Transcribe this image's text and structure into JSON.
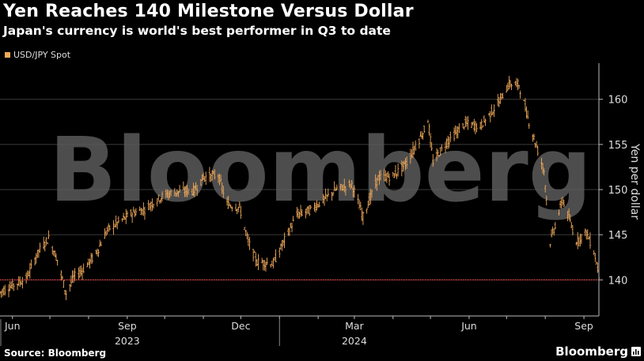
{
  "header": {
    "title": "Yen Reaches 140 Milestone Versus Dollar",
    "subtitle": "Japan's currency is world's best performer in Q3 to date"
  },
  "legend": {
    "label": "USD/JPY Spot"
  },
  "watermark": "Bloomberg",
  "footer": {
    "source": "Source: Bloomberg",
    "brand": "Bloomberg"
  },
  "colors": {
    "series": "#f0a95a",
    "reference_line": "#e03030",
    "grid": "#3a3a3a",
    "background": "#000000"
  },
  "chart_data": {
    "type": "line",
    "style": "ohlc-bars",
    "title": "Yen Reaches 140 Milestone Versus Dollar",
    "subtitle": "Japan's currency is world's best performer in Q3 to date",
    "ylabel": "Yen per dollar",
    "xlabel": "",
    "ylim": [
      136,
      164
    ],
    "yticks": [
      140,
      145,
      150,
      155,
      160
    ],
    "y_axis_side": "right",
    "xlim": [
      "2023-05-22",
      "2024-09-13"
    ],
    "x_ticks": [
      {
        "date": "2023-06-01",
        "label": "Jun"
      },
      {
        "date": "2023-09-01",
        "label": "Sep"
      },
      {
        "date": "2023-12-01",
        "label": "Dec"
      },
      {
        "date": "2024-03-01",
        "label": "Mar"
      },
      {
        "date": "2024-06-01",
        "label": "Jun"
      },
      {
        "date": "2024-09-01",
        "label": "Sep"
      }
    ],
    "year_labels": [
      {
        "date": "2023-09-01",
        "label": "2023"
      },
      {
        "date": "2024-03-01",
        "label": "2024"
      }
    ],
    "year_separators": [
      "2023-05-22",
      "2024-01-01"
    ],
    "reference_line": {
      "y": 140,
      "style": "dotted"
    },
    "grid": true,
    "legend_position": "top-left",
    "series": [
      {
        "name": "USD/JPY Spot",
        "points": [
          [
            "2023-05-22",
            138.6
          ],
          [
            "2023-06-01",
            139.4
          ],
          [
            "2023-06-12",
            140.1
          ],
          [
            "2023-06-22",
            143.2
          ],
          [
            "2023-06-30",
            144.6
          ],
          [
            "2023-07-07",
            142.2
          ],
          [
            "2023-07-14",
            138.5
          ],
          [
            "2023-07-20",
            140.3
          ],
          [
            "2023-07-28",
            141.2
          ],
          [
            "2023-08-07",
            142.9
          ],
          [
            "2023-08-16",
            145.5
          ],
          [
            "2023-08-25",
            146.4
          ],
          [
            "2023-09-05",
            147.4
          ],
          [
            "2023-09-15",
            147.8
          ],
          [
            "2023-09-25",
            148.9
          ],
          [
            "2023-10-03",
            149.5
          ],
          [
            "2023-10-13",
            149.8
          ],
          [
            "2023-10-25",
            149.9
          ],
          [
            "2023-11-01",
            151.4
          ],
          [
            "2023-11-13",
            151.6
          ],
          [
            "2023-11-20",
            148.4
          ],
          [
            "2023-11-30",
            148.0
          ],
          [
            "2023-12-07",
            144.2
          ],
          [
            "2023-12-14",
            142.0
          ],
          [
            "2023-12-27",
            141.8
          ],
          [
            "2024-01-05",
            144.4
          ],
          [
            "2024-01-15",
            147.2
          ],
          [
            "2024-01-25",
            147.7
          ],
          [
            "2024-02-05",
            148.8
          ],
          [
            "2024-02-15",
            150.0
          ],
          [
            "2024-02-28",
            150.6
          ],
          [
            "2024-03-08",
            147.0
          ],
          [
            "2024-03-20",
            151.3
          ],
          [
            "2024-04-01",
            151.5
          ],
          [
            "2024-04-12",
            153.0
          ],
          [
            "2024-04-26",
            156.6
          ],
          [
            "2024-04-29",
            157.8
          ],
          [
            "2024-05-03",
            153.1
          ],
          [
            "2024-05-15",
            155.4
          ],
          [
            "2024-05-29",
            157.3
          ],
          [
            "2024-06-10",
            157.0
          ],
          [
            "2024-06-25",
            159.7
          ],
          [
            "2024-07-03",
            161.7
          ],
          [
            "2024-07-11",
            161.6
          ],
          [
            "2024-07-19",
            157.5
          ],
          [
            "2024-07-31",
            152.1
          ],
          [
            "2024-08-05",
            144.2
          ],
          [
            "2024-08-15",
            148.9
          ],
          [
            "2024-08-26",
            144.3
          ],
          [
            "2024-09-03",
            145.3
          ],
          [
            "2024-09-09",
            143.2
          ],
          [
            "2024-09-13",
            140.6
          ]
        ]
      }
    ]
  }
}
